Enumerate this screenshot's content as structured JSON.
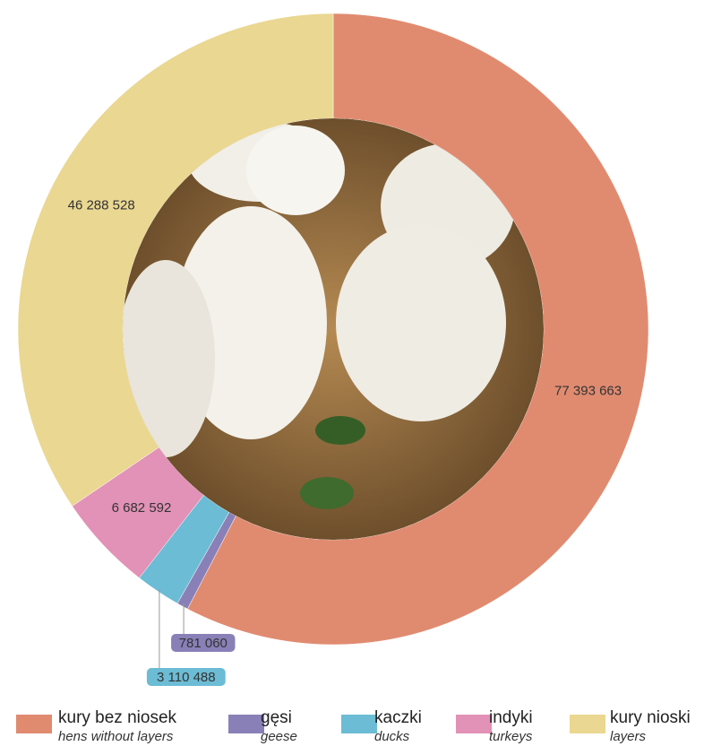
{
  "chart_data": {
    "type": "donut",
    "categories": [
      "kury bez niosek",
      "gęsi",
      "kaczki",
      "indyki",
      "kury nioski"
    ],
    "categories_en": [
      "hens without layers",
      "geese",
      "ducks",
      "turkeys",
      "layers"
    ],
    "values": [
      77393663,
      781060,
      3110488,
      6682592,
      46288528
    ],
    "value_labels": [
      "77 393 663",
      "781 060",
      "3 110 488",
      "6 682 592",
      "46 288 528"
    ],
    "colors": [
      "#e08b70",
      "#8a80b8",
      "#6cbcd5",
      "#e291b7",
      "#ead791"
    ]
  }
}
